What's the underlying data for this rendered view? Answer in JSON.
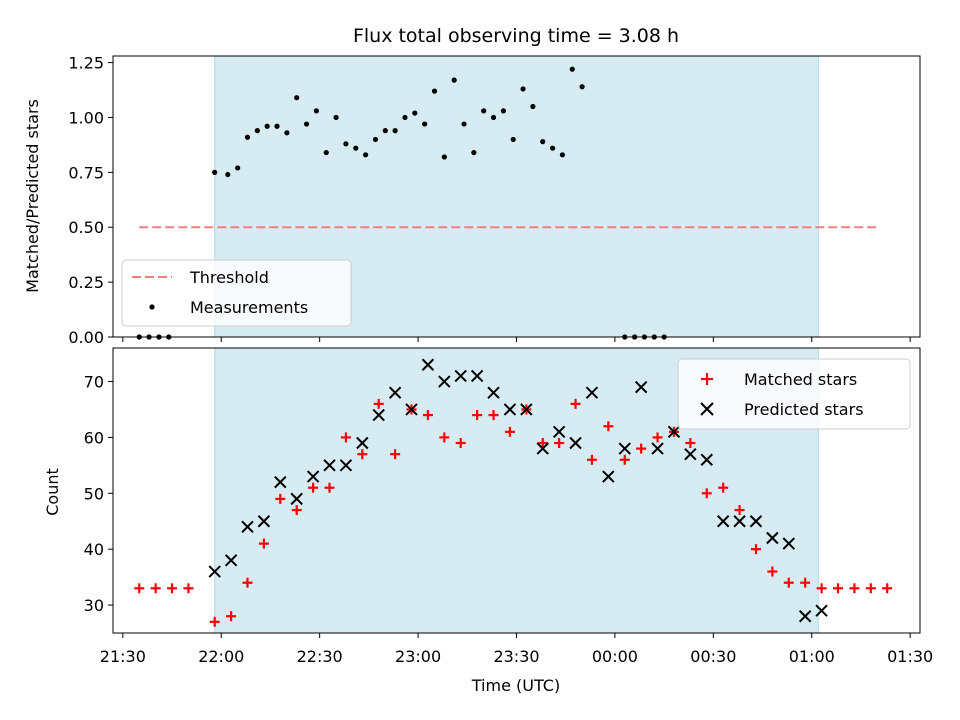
{
  "chart_data": [
    {
      "type": "scatter",
      "title": "Flux total observing time = 3.08 h",
      "xlabel": "",
      "ylabel": "Matched/Predicted stars",
      "xlim": [
        "21:27",
        "01:33"
      ],
      "ylim": [
        0,
        1.28
      ],
      "y_ticks": [
        "0.00",
        "0.25",
        "0.50",
        "0.75",
        "1.00",
        "1.25"
      ],
      "y_tick_values": [
        0,
        0.25,
        0.5,
        0.75,
        1.0,
        1.25
      ],
      "observing_window": [
        "21:58",
        "01:02"
      ],
      "threshold": {
        "name": "Threshold",
        "y": 0.5,
        "x_range": [
          "21:35",
          "01:20"
        ],
        "color": "#f08080"
      },
      "legend": {
        "placement": "lower-left",
        "entries": [
          "Threshold",
          "Measurements"
        ]
      },
      "series": [
        {
          "name": "Measurements",
          "color": "#000000",
          "marker": "dot",
          "points": [
            [
              "21:35",
              0.0
            ],
            [
              "21:38",
              0.0
            ],
            [
              "21:41",
              0.0
            ],
            [
              "21:44",
              0.0
            ],
            [
              "21:58",
              0.75
            ],
            [
              "22:02",
              0.74
            ],
            [
              "22:05",
              0.77
            ],
            [
              "22:08",
              0.91
            ],
            [
              "22:11",
              0.94
            ],
            [
              "22:14",
              0.96
            ],
            [
              "22:17",
              0.96
            ],
            [
              "22:20",
              0.93
            ],
            [
              "22:23",
              1.09
            ],
            [
              "22:26",
              0.97
            ],
            [
              "22:29",
              1.03
            ],
            [
              "22:32",
              0.84
            ],
            [
              "22:35",
              1.0
            ],
            [
              "22:38",
              0.88
            ],
            [
              "22:41",
              0.86
            ],
            [
              "22:44",
              0.83
            ],
            [
              "22:47",
              0.9
            ],
            [
              "22:50",
              0.94
            ],
            [
              "22:53",
              0.94
            ],
            [
              "22:56",
              1.0
            ],
            [
              "22:59",
              1.02
            ],
            [
              "23:02",
              0.97
            ],
            [
              "23:05",
              1.12
            ],
            [
              "23:08",
              0.82
            ],
            [
              "23:11",
              1.17
            ],
            [
              "23:14",
              0.97
            ],
            [
              "23:17",
              0.84
            ],
            [
              "23:20",
              1.03
            ],
            [
              "23:23",
              1.0
            ],
            [
              "23:26",
              1.03
            ],
            [
              "23:29",
              0.9
            ],
            [
              "23:32",
              1.13
            ],
            [
              "23:35",
              1.05
            ],
            [
              "23:38",
              0.89
            ],
            [
              "23:41",
              0.86
            ],
            [
              "23:44",
              0.83
            ],
            [
              "23:47",
              1.22
            ],
            [
              "23:50",
              1.14
            ],
            [
              "00:03",
              0.0
            ],
            [
              "00:06",
              0.0
            ],
            [
              "00:09",
              0.0
            ],
            [
              "00:12",
              0.0
            ],
            [
              "00:15",
              0.0
            ]
          ]
        }
      ]
    },
    {
      "type": "scatter",
      "title": "",
      "xlabel": "Time (UTC)",
      "ylabel": "Count",
      "xlim": [
        "21:27",
        "01:33"
      ],
      "ylim": [
        25,
        76
      ],
      "x_ticks": [
        "21:30",
        "22:00",
        "22:30",
        "23:00",
        "23:30",
        "00:00",
        "00:30",
        "01:00",
        "01:30"
      ],
      "y_ticks": [
        "30",
        "40",
        "50",
        "60",
        "70"
      ],
      "y_tick_values": [
        30,
        40,
        50,
        60,
        70
      ],
      "observing_window": [
        "21:58",
        "01:02"
      ],
      "legend": {
        "placement": "top-right",
        "entries": [
          "Matched stars",
          "Predicted stars"
        ]
      },
      "series": [
        {
          "name": "Matched stars",
          "color": "#ff0000",
          "marker": "plus",
          "points": [
            [
              "21:35",
              33
            ],
            [
              "21:40",
              33
            ],
            [
              "21:45",
              33
            ],
            [
              "21:50",
              33
            ],
            [
              "21:58",
              27
            ],
            [
              "22:03",
              28
            ],
            [
              "22:08",
              34
            ],
            [
              "22:13",
              41
            ],
            [
              "22:18",
              49
            ],
            [
              "22:23",
              47
            ],
            [
              "22:28",
              51
            ],
            [
              "22:33",
              51
            ],
            [
              "22:38",
              60
            ],
            [
              "22:43",
              57
            ],
            [
              "22:48",
              66
            ],
            [
              "22:53",
              57
            ],
            [
              "22:58",
              65
            ],
            [
              "23:03",
              64
            ],
            [
              "23:08",
              60
            ],
            [
              "23:13",
              59
            ],
            [
              "23:18",
              64
            ],
            [
              "23:23",
              64
            ],
            [
              "23:28",
              61
            ],
            [
              "23:33",
              65
            ],
            [
              "23:38",
              59
            ],
            [
              "23:43",
              59
            ],
            [
              "23:48",
              66
            ],
            [
              "23:53",
              56
            ],
            [
              "23:58",
              62
            ],
            [
              "00:03",
              56
            ],
            [
              "00:08",
              58
            ],
            [
              "00:13",
              60
            ],
            [
              "00:18",
              61
            ],
            [
              "00:23",
              59
            ],
            [
              "00:28",
              50
            ],
            [
              "00:33",
              51
            ],
            [
              "00:38",
              47
            ],
            [
              "00:43",
              40
            ],
            [
              "00:48",
              36
            ],
            [
              "00:53",
              34
            ],
            [
              "00:58",
              34
            ],
            [
              "01:03",
              33
            ],
            [
              "01:08",
              33
            ],
            [
              "01:13",
              33
            ],
            [
              "01:18",
              33
            ],
            [
              "01:23",
              33
            ]
          ]
        },
        {
          "name": "Predicted stars",
          "color": "#000000",
          "marker": "x",
          "points": [
            [
              "21:58",
              36
            ],
            [
              "22:03",
              38
            ],
            [
              "22:08",
              44
            ],
            [
              "22:13",
              45
            ],
            [
              "22:18",
              52
            ],
            [
              "22:23",
              49
            ],
            [
              "22:28",
              53
            ],
            [
              "22:33",
              55
            ],
            [
              "22:38",
              55
            ],
            [
              "22:43",
              59
            ],
            [
              "22:48",
              64
            ],
            [
              "22:53",
              68
            ],
            [
              "22:58",
              65
            ],
            [
              "23:03",
              73
            ],
            [
              "23:08",
              70
            ],
            [
              "23:13",
              71
            ],
            [
              "23:18",
              71
            ],
            [
              "23:23",
              68
            ],
            [
              "23:28",
              65
            ],
            [
              "23:33",
              65
            ],
            [
              "23:38",
              58
            ],
            [
              "23:43",
              61
            ],
            [
              "23:48",
              59
            ],
            [
              "23:53",
              68
            ],
            [
              "23:58",
              53
            ],
            [
              "00:03",
              58
            ],
            [
              "00:08",
              69
            ],
            [
              "00:13",
              58
            ],
            [
              "00:18",
              61
            ],
            [
              "00:23",
              57
            ],
            [
              "00:28",
              56
            ],
            [
              "00:33",
              45
            ],
            [
              "00:38",
              45
            ],
            [
              "00:43",
              45
            ],
            [
              "00:48",
              42
            ],
            [
              "00:53",
              41
            ],
            [
              "00:58",
              28
            ],
            [
              "01:03",
              29
            ]
          ]
        }
      ]
    }
  ],
  "colors": {
    "window_fill": "#add8e6"
  }
}
